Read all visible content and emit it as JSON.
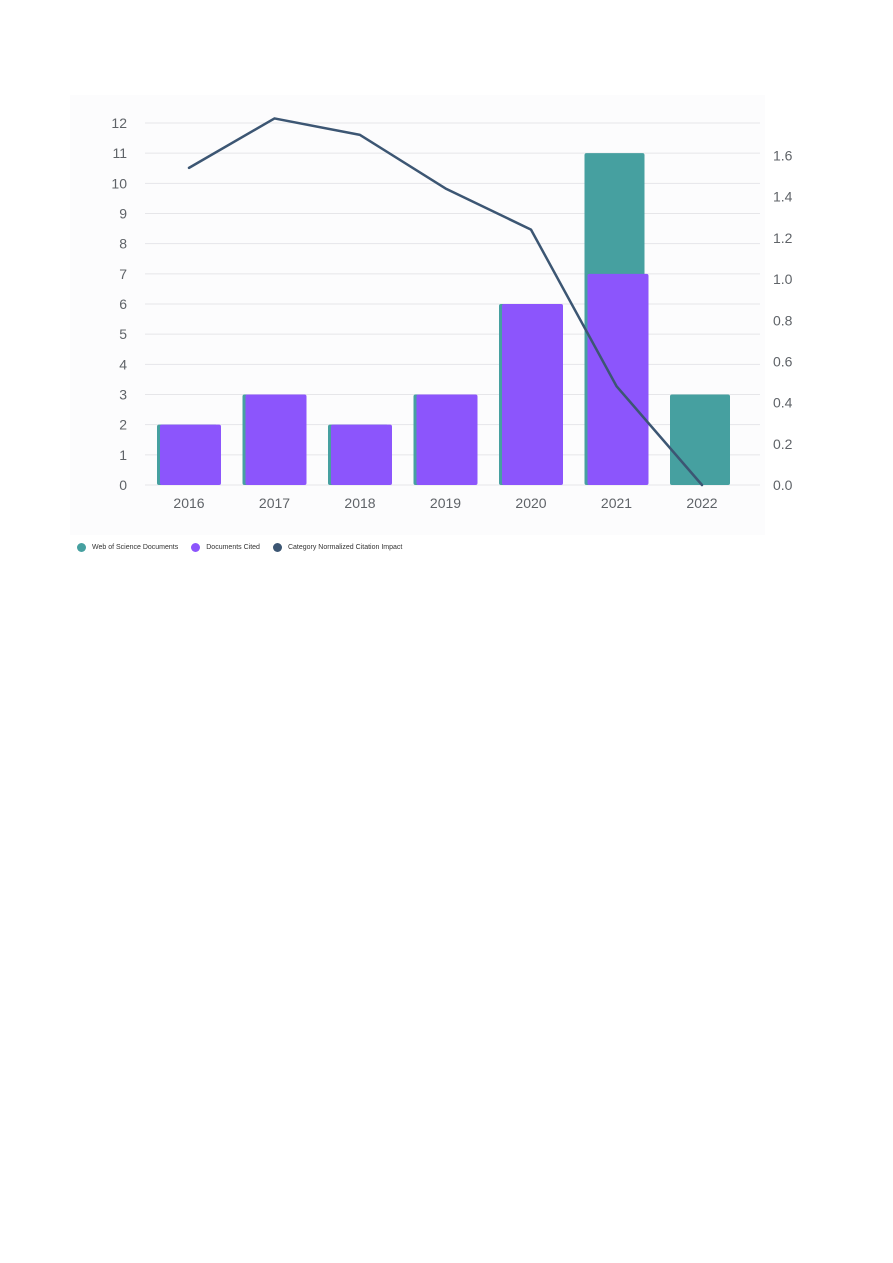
{
  "chart_data": {
    "type": "bar",
    "categories": [
      "2016",
      "2017",
      "2018",
      "2019",
      "2020",
      "2021",
      "2022"
    ],
    "series": [
      {
        "name": "Web of Science Documents",
        "type": "bar",
        "axis": "left",
        "color": "#46a0a0",
        "values": [
          2,
          3,
          2,
          3,
          6,
          11,
          3
        ]
      },
      {
        "name": "Documents Cited",
        "type": "bar",
        "axis": "left",
        "color": "#8c55fc",
        "values": [
          2,
          3,
          2,
          3,
          6,
          7,
          0
        ]
      },
      {
        "name": "Category Normalized Citation Impact",
        "type": "line",
        "axis": "right",
        "color": "#3c5673",
        "values": [
          1.54,
          1.78,
          1.7,
          1.44,
          1.24,
          0.48,
          0.0
        ]
      }
    ],
    "y_left": {
      "min": 0,
      "max": 12,
      "ticks": [
        "0",
        "1",
        "2",
        "3",
        "4",
        "5",
        "6",
        "7",
        "8",
        "9",
        "10",
        "11",
        "12"
      ]
    },
    "y_right": {
      "min": 0,
      "max": 1.6,
      "ticks": [
        "0.0",
        "0.2",
        "0.4",
        "0.6",
        "0.8",
        "1.0",
        "1.2",
        "1.4",
        "1.6"
      ]
    },
    "grid": true,
    "legend_position": "bottom-left",
    "title": "",
    "xlabel": "",
    "ylabel": ""
  }
}
